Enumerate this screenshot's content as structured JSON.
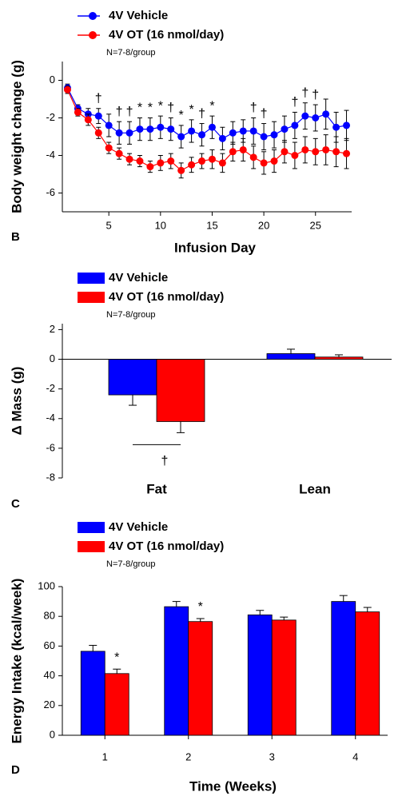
{
  "chart_data": [
    {
      "type": "line",
      "panel_label": "B",
      "x_label": "Infusion Day",
      "y_label": "Body weight change (g)",
      "note": "N=7-8/group",
      "x": [
        1,
        2,
        3,
        4,
        5,
        6,
        7,
        8,
        9,
        10,
        11,
        12,
        13,
        14,
        15,
        16,
        17,
        18,
        19,
        20,
        21,
        22,
        23,
        24,
        25,
        26,
        27,
        28
      ],
      "xlim": [
        0.5,
        28.5
      ],
      "xticks": [
        5,
        10,
        15,
        20,
        25
      ],
      "ylim": [
        -7,
        1
      ],
      "yticks": [
        0,
        -2,
        -4,
        -6
      ],
      "series": [
        {
          "name": "4V Vehicle",
          "color": "#0000ff",
          "values": [
            -0.4,
            -1.5,
            -1.8,
            -1.9,
            -2.4,
            -2.8,
            -2.8,
            -2.6,
            -2.6,
            -2.5,
            -2.6,
            -3.0,
            -2.7,
            -2.9,
            -2.5,
            -3.1,
            -2.8,
            -2.7,
            -2.7,
            -3.0,
            -2.9,
            -2.6,
            -2.4,
            -1.9,
            -2.0,
            -1.8,
            -2.5,
            -2.4
          ],
          "errors": [
            0.2,
            0.2,
            0.3,
            0.4,
            0.6,
            0.6,
            0.6,
            0.6,
            0.6,
            0.6,
            0.6,
            0.6,
            0.6,
            0.6,
            0.6,
            0.6,
            0.6,
            0.6,
            0.7,
            0.7,
            0.7,
            0.7,
            0.7,
            0.7,
            0.7,
            0.8,
            0.8,
            0.8
          ]
        },
        {
          "name": "4V OT (16 nmol/day)",
          "color": "#ff0000",
          "values": [
            -0.5,
            -1.7,
            -2.1,
            -2.8,
            -3.6,
            -3.9,
            -4.2,
            -4.3,
            -4.6,
            -4.4,
            -4.3,
            -4.8,
            -4.5,
            -4.3,
            -4.2,
            -4.4,
            -3.8,
            -3.7,
            -4.1,
            -4.4,
            -4.3,
            -3.8,
            -4.0,
            -3.7,
            -3.8,
            -3.7,
            -3.8,
            -3.9
          ],
          "errors": [
            0.2,
            0.2,
            0.3,
            0.3,
            0.3,
            0.3,
            0.3,
            0.3,
            0.3,
            0.4,
            0.4,
            0.4,
            0.4,
            0.4,
            0.5,
            0.5,
            0.5,
            0.6,
            0.6,
            0.6,
            0.6,
            0.6,
            0.7,
            0.7,
            0.7,
            0.8,
            0.8,
            0.8
          ]
        }
      ],
      "annotations": [
        {
          "text": "†",
          "x": 4
        },
        {
          "text": "†",
          "x": 6
        },
        {
          "text": "†",
          "x": 7
        },
        {
          "text": "*",
          "x": 8
        },
        {
          "text": "*",
          "x": 9
        },
        {
          "text": "*",
          "x": 10
        },
        {
          "text": "†",
          "x": 11
        },
        {
          "text": "*",
          "x": 12
        },
        {
          "text": "*",
          "x": 13
        },
        {
          "text": "†",
          "x": 14
        },
        {
          "text": "*",
          "x": 15
        },
        {
          "text": "†",
          "x": 19
        },
        {
          "text": "†",
          "x": 20
        },
        {
          "text": "†",
          "x": 23
        },
        {
          "text": "†",
          "x": 24
        },
        {
          "text": "†",
          "x": 25
        }
      ]
    },
    {
      "type": "bar",
      "panel_label": "C",
      "y_label": "Δ Mass (g)",
      "note": "N=7-8/group",
      "categories": [
        "Fat",
        "Lean"
      ],
      "ylim": [
        -8,
        2.4
      ],
      "yticks": [
        2,
        0,
        -2,
        -4,
        -6,
        -8
      ],
      "series": [
        {
          "name": "4V Vehicle",
          "color": "#0000ff",
          "values": [
            -2.4,
            0.38
          ],
          "errors": [
            0.7,
            0.3
          ]
        },
        {
          "name": "4V OT (16 nmol/day)",
          "color": "#ff0000",
          "values": [
            -4.2,
            0.15
          ],
          "errors": [
            0.75,
            0.15
          ]
        }
      ],
      "annotations": [
        {
          "text": "†",
          "category": 0
        }
      ]
    },
    {
      "type": "bar",
      "panel_label": "D",
      "x_label": "Time (Weeks)",
      "y_label": "Energy Intake (kcal/week)",
      "note": "N=7-8/group",
      "categories": [
        "1",
        "2",
        "3",
        "4"
      ],
      "ylim": [
        0,
        100
      ],
      "yticks": [
        0,
        20,
        40,
        60,
        80,
        100
      ],
      "series": [
        {
          "name": "4V Vehicle",
          "color": "#0000ff",
          "values": [
            56.5,
            86.5,
            81,
            90
          ],
          "errors": [
            4,
            3.5,
            3,
            4
          ]
        },
        {
          "name": "4V OT (16 nmol/day)",
          "color": "#ff0000",
          "values": [
            41.5,
            76.5,
            77.5,
            83
          ],
          "errors": [
            3,
            2,
            2,
            3
          ]
        }
      ],
      "annotations": [
        {
          "text": "*",
          "category": 0
        },
        {
          "text": "*",
          "category": 1
        }
      ]
    }
  ]
}
